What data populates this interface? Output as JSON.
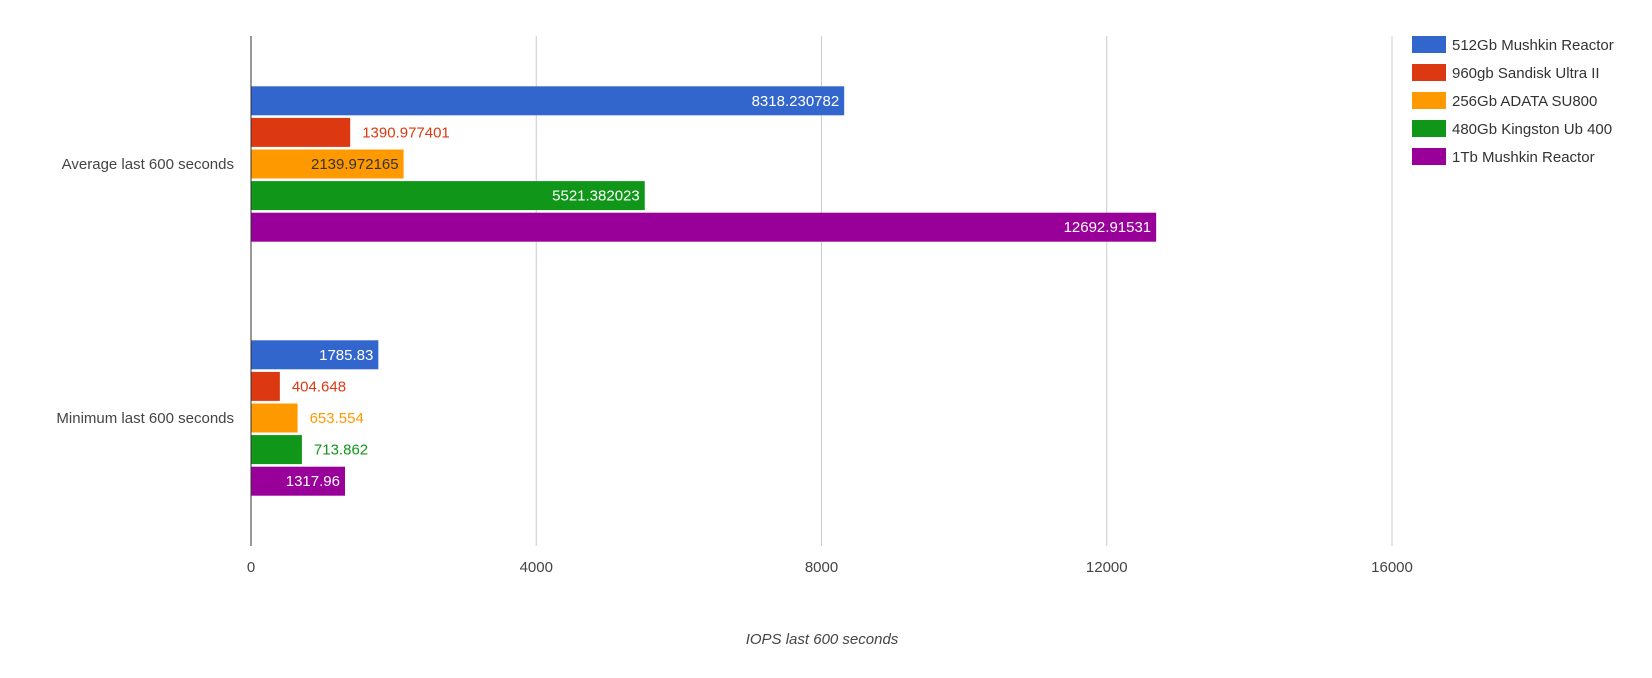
{
  "chart_data": {
    "type": "bar",
    "orientation": "horizontal",
    "categories": [
      "Average last 600 seconds",
      "Minimum last 600 seconds"
    ],
    "series": [
      {
        "name": "512Gb Mushkin Reactor",
        "color": "#3366cc",
        "values": [
          8318.230782,
          1785.83
        ],
        "labels": [
          "8318.230782",
          "1785.83"
        ]
      },
      {
        "name": "960gb Sandisk Ultra II",
        "color": "#dc3912",
        "values": [
          1390.977401,
          404.648
        ],
        "labels": [
          "1390.977401",
          "404.648"
        ]
      },
      {
        "name": "256Gb ADATA SU800",
        "color": "#ff9900",
        "values": [
          2139.972165,
          653.554
        ],
        "labels": [
          "2139.972165",
          "653.554"
        ]
      },
      {
        "name": "480Gb Kingston Ub 400",
        "color": "#109618",
        "values": [
          5521.382023,
          713.862
        ],
        "labels": [
          "5521.382023",
          "713.862"
        ]
      },
      {
        "name": "1Tb Mushkin Reactor",
        "color": "#990099",
        "values": [
          12692.91531,
          1317.96
        ],
        "labels": [
          "12692.91531",
          "1317.96"
        ]
      }
    ],
    "xticks": [
      "0",
      "4000",
      "8000",
      "12000",
      "16000"
    ],
    "xlim": [
      0,
      16000
    ],
    "xlabel": "IOPS last 600 seconds",
    "ylabel": "",
    "title": "",
    "grid": true,
    "legend_position": "right"
  }
}
